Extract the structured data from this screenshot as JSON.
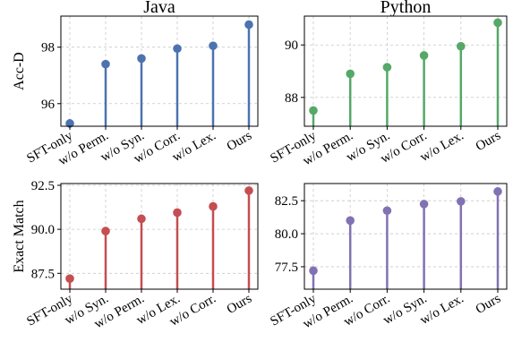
{
  "chart_data": [
    {
      "type": "lollipop",
      "title": "Java",
      "xlabel": "",
      "ylabel": "Acc-D",
      "categories": [
        "SFT-only",
        "w/o Perm.",
        "w/o Syn.",
        "w/o Corr.",
        "w/o Lex.",
        "Ours"
      ],
      "values": [
        95.3,
        97.4,
        97.6,
        97.95,
        98.05,
        98.8
      ],
      "ylim": [
        95.2,
        99.1
      ],
      "yticks": [
        96,
        98
      ],
      "ytick_labels": [
        "96",
        "98"
      ],
      "color": "#4c72b0",
      "grid": true
    },
    {
      "type": "lollipop",
      "title": "Python",
      "xlabel": "",
      "ylabel": "",
      "categories": [
        "SFT-only",
        "w/o Perm.",
        "w/o Syn.",
        "w/o Corr.",
        "w/o Lex.",
        "Ours"
      ],
      "values": [
        87.5,
        88.9,
        89.15,
        89.6,
        89.95,
        90.85
      ],
      "ylim": [
        86.9,
        91.1
      ],
      "yticks": [
        88,
        90
      ],
      "ytick_labels": [
        "88",
        "90"
      ],
      "color": "#55a868",
      "grid": true
    },
    {
      "type": "lollipop",
      "title": "",
      "xlabel": "",
      "ylabel": "Exact Match",
      "categories": [
        "SFT-only",
        "w/o Syn.",
        "w/o Perm.",
        "w/o Lex.",
        "w/o Corr.",
        "Ours"
      ],
      "values": [
        87.2,
        89.9,
        90.6,
        90.95,
        91.3,
        92.2
      ],
      "ylim": [
        86.6,
        92.6
      ],
      "yticks": [
        87.5,
        90.0,
        92.5
      ],
      "ytick_labels": [
        "87.5",
        "90.0",
        "92.5"
      ],
      "color": "#c44e52",
      "grid": true
    },
    {
      "type": "lollipop",
      "title": "",
      "xlabel": "",
      "ylabel": "",
      "categories": [
        "SFT-only",
        "w/o Perm.",
        "w/o Corr.",
        "w/o Syn.",
        "w/o Lex.",
        "Ours"
      ],
      "values": [
        77.2,
        81.0,
        81.75,
        82.25,
        82.45,
        83.2
      ],
      "ylim": [
        75.8,
        83.8
      ],
      "yticks": [
        77.5,
        80.0,
        82.5
      ],
      "ytick_labels": [
        "77.5",
        "80.0",
        "82.5"
      ],
      "color": "#8172b3",
      "grid": true
    }
  ]
}
